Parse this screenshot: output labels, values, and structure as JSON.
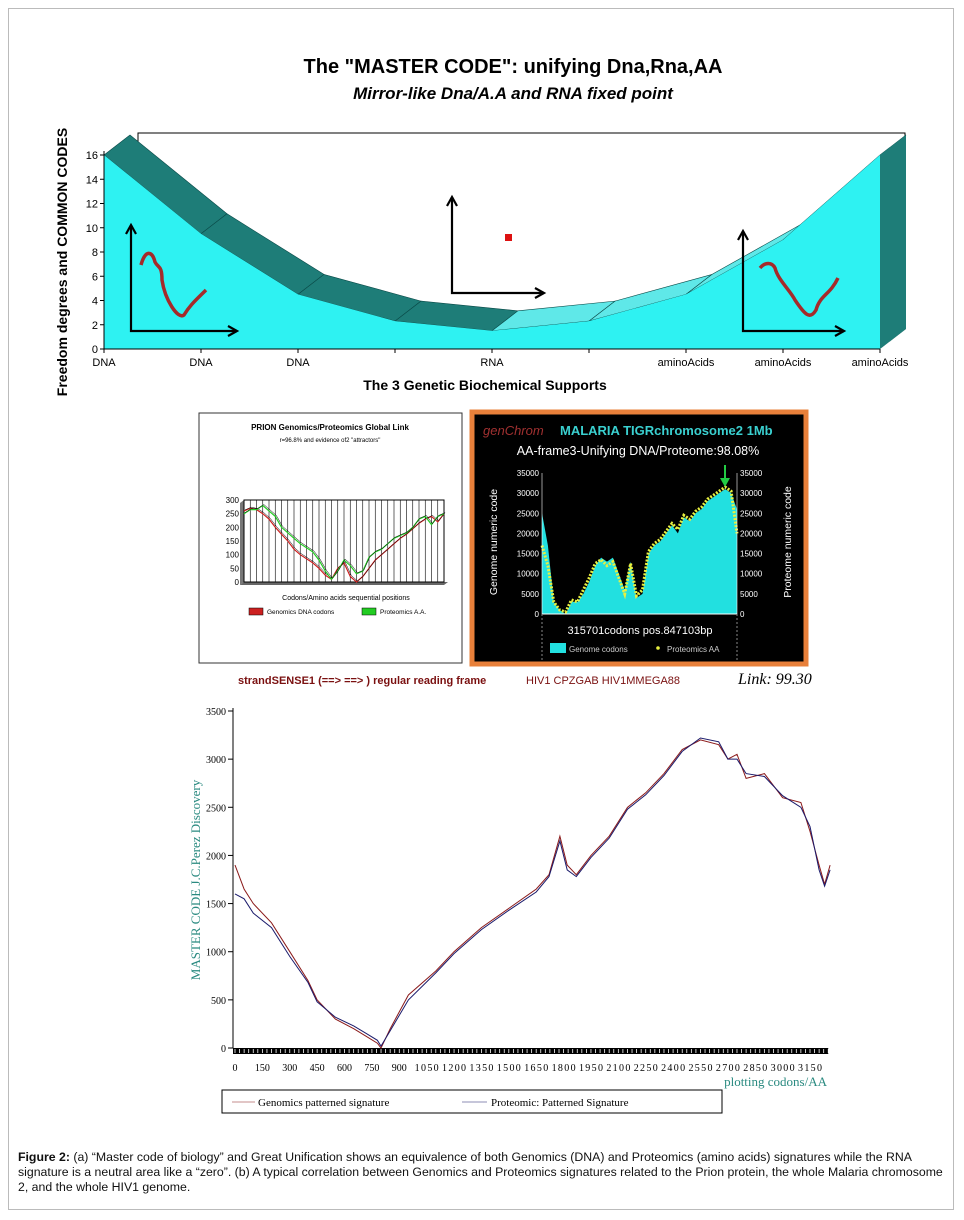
{
  "figure": {
    "caption_label": "Figure 2:",
    "caption_text": " (a) “Master code of biology” and Great Unification shows an equivalence of both Genomics (DNA) and Proteomics (amino acids) signatures while the RNA signature is a neutral area like a “zero”. (b) A typical correlation between Genomics and Proteomics signatures related to the Prion protein, the whole Malaria chromosome 2, and the whole HIV1 genome.",
    "strand_text": "strandSENSE1 (==> ==> ) regular reading frame",
    "hiv_text": "HIV1 CPZGAB HIV1MMEGA88",
    "link_text": "Link: 99.30"
  },
  "chart_data": [
    {
      "id": "master-code",
      "type": "area",
      "title": "The \"MASTER CODE\": unifying Dna,Rna,AA",
      "subtitle": "Mirror-like Dna/A.A and RNA fixed point",
      "xlabel": "The 3 Genetic Biochemical Supports",
      "ylabel": "Freedom degrees and COMMON CODES",
      "categories": [
        "DNA",
        "DNA",
        "DNA",
        "",
        "RNA",
        "",
        "aminoAcids",
        "aminoAcids",
        "aminoAcids"
      ],
      "values": [
        16,
        9.5,
        4.5,
        2.3,
        1.5,
        2.3,
        4.5,
        9,
        16
      ],
      "yticks": [
        0,
        2,
        4,
        6,
        8,
        10,
        12,
        14,
        16
      ],
      "ylim": [
        0,
        16
      ],
      "colors": {
        "front": "#2ef2f2",
        "top_dna": "#1e7d78",
        "top_aa": "#5fe8e8",
        "wall": "#888888",
        "squiggle": "#a52a2a",
        "point": "#dd1111"
      }
    },
    {
      "id": "prion",
      "type": "line",
      "title": "PRION Genomics/Proteomics Global Link",
      "subtitle": "r=96.8% and evidence of2 \"attractors\"",
      "xlabel": "Codons/Amino acids sequential positions",
      "yticks": [
        0,
        50,
        100,
        150,
        200,
        250,
        300
      ],
      "ylim": [
        0,
        300
      ],
      "grid": true,
      "legend": "bottom",
      "series": [
        {
          "name": "Genomics DNA codons",
          "color": "#cc2020",
          "values": [
            260,
            270,
            265,
            250,
            230,
            200,
            175,
            150,
            120,
            100,
            85,
            70,
            50,
            25,
            10,
            50,
            70,
            20,
            0,
            20,
            50,
            80,
            100,
            120,
            140,
            160,
            175,
            195,
            215,
            230,
            240,
            220,
            250
          ]
        },
        {
          "name": "Proteomics A.A.",
          "color": "#22cc22",
          "values": [
            250,
            265,
            265,
            280,
            260,
            240,
            200,
            180,
            160,
            140,
            125,
            110,
            80,
            40,
            10,
            40,
            80,
            60,
            30,
            40,
            90,
            110,
            120,
            140,
            160,
            170,
            180,
            200,
            230,
            240,
            210,
            240,
            250
          ]
        }
      ]
    },
    {
      "id": "malaria",
      "type": "area",
      "brand": "genChrom",
      "title": "MALARIA TIGRchromosome2 1Mb",
      "subtitle": "AA-frame3-Unifying DNA/Proteome:98.08%",
      "ylabel_left": "Genome numeric code",
      "ylabel_right": "Proteome numeric code",
      "xlabel": "315701codons pos.847103bp",
      "yticks": [
        0,
        5000,
        10000,
        15000,
        20000,
        25000,
        30000,
        35000
      ],
      "ytick_labels": [
        "0",
        "5000",
        "10000",
        "15000",
        "20000",
        "25000",
        "30000",
        "35000"
      ],
      "ylim": [
        0,
        35000
      ],
      "legend": "bottom",
      "series": [
        {
          "name": "Genome codons",
          "color": "#22e0e0",
          "values": [
            25000,
            17000,
            3000,
            1000,
            0,
            3000,
            3000,
            5000,
            8000,
            12000,
            14000,
            13000,
            14000,
            10000,
            6000,
            13000,
            4000,
            5000,
            15000,
            17000,
            18000,
            20000,
            22000,
            20000,
            24000,
            23000,
            25000,
            26000,
            28000,
            29000,
            30000,
            31000,
            30000,
            26000
          ]
        },
        {
          "name": "Proteomics AA",
          "color": "#e8f040",
          "values": [
            17000,
            12000,
            3000,
            1000,
            500,
            3500,
            3000,
            6000,
            9000,
            12500,
            13500,
            12000,
            13000,
            9000,
            5000,
            12500,
            4500,
            6000,
            15500,
            17500,
            18500,
            20500,
            22500,
            21000,
            24500,
            23500,
            25500,
            26500,
            28500,
            29500,
            30500,
            31500,
            30500,
            20000
          ]
        }
      ],
      "colors": {
        "border": "#e8803a",
        "background": "#000000",
        "brand": "#a03030",
        "title": "#3ad0d0",
        "arrow": "#22cc44"
      }
    },
    {
      "id": "hiv",
      "type": "line",
      "ylabel": "MASTER CODE J.C.Perez Discovery",
      "xlabel": "plotting codons/AA",
      "yticks": [
        0,
        500,
        1000,
        1500,
        2000,
        2500,
        3000,
        3500
      ],
      "xticks": [
        0,
        150,
        300,
        450,
        600,
        750,
        900,
        1050,
        1200,
        1350,
        1500,
        1650,
        1800,
        1950,
        2100,
        2250,
        2400,
        2550,
        2700,
        2850,
        3000,
        3150
      ],
      "ylim": [
        0,
        3500
      ],
      "xlim": [
        0,
        3250
      ],
      "legend": "bottom",
      "series": [
        {
          "name": "Genomics patterned signature",
          "color": "#8b1a1a",
          "x": [
            0,
            50,
            100,
            200,
            300,
            400,
            450,
            550,
            650,
            720,
            780,
            800,
            850,
            950,
            1100,
            1200,
            1350,
            1500,
            1650,
            1720,
            1780,
            1820,
            1870,
            1950,
            2050,
            2150,
            2250,
            2350,
            2450,
            2550,
            2650,
            2700,
            2750,
            2800,
            2900,
            3000,
            3100,
            3150,
            3200,
            3230,
            3260
          ],
          "y": [
            1900,
            1650,
            1500,
            1300,
            1000,
            700,
            500,
            300,
            200,
            120,
            50,
            0,
            200,
            550,
            800,
            1000,
            1250,
            1450,
            1650,
            1800,
            2200,
            1900,
            1800,
            2000,
            2200,
            2500,
            2650,
            2850,
            3100,
            3200,
            3150,
            3000,
            3050,
            2800,
            2850,
            2600,
            2550,
            2250,
            1900,
            1700,
            1900
          ]
        },
        {
          "name": "Proteomic: Patterned Signature",
          "color": "#1a1a6b",
          "x": [
            0,
            50,
            100,
            200,
            300,
            400,
            450,
            550,
            650,
            720,
            780,
            800,
            850,
            950,
            1100,
            1200,
            1350,
            1500,
            1650,
            1720,
            1780,
            1820,
            1870,
            1950,
            2050,
            2150,
            2250,
            2350,
            2450,
            2550,
            2650,
            2700,
            2750,
            2800,
            2900,
            3000,
            3100,
            3150,
            3200,
            3230,
            3260
          ],
          "y": [
            1600,
            1550,
            1400,
            1250,
            950,
            680,
            480,
            320,
            230,
            150,
            80,
            20,
            180,
            500,
            780,
            980,
            1230,
            1430,
            1620,
            1780,
            2150,
            1850,
            1780,
            1980,
            2180,
            2480,
            2630,
            2830,
            3080,
            3220,
            3180,
            3000,
            3000,
            2850,
            2820,
            2620,
            2500,
            2300,
            1850,
            1680,
            1850
          ]
        }
      ]
    }
  ]
}
